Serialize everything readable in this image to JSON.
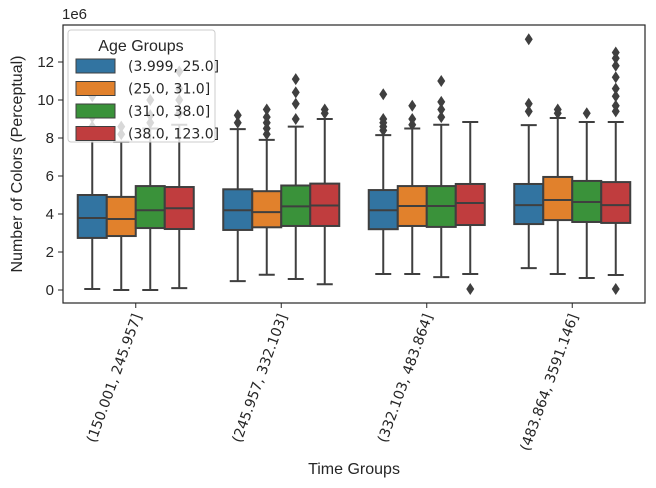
{
  "chart_data": {
    "type": "box",
    "title": "",
    "xlabel": "Time Groups",
    "ylabel": "Number of Colors (Perceptual)",
    "y_scale_label": "1e6",
    "ylim": [
      -0.7,
      13.9
    ],
    "yticks": [
      0,
      2,
      4,
      6,
      8,
      10,
      12
    ],
    "grid": false,
    "categories": [
      "(150.001, 245.957]",
      "(245.957, 332.103]",
      "(332.103, 483.864]",
      "(483.864, 3591.146]"
    ],
    "legend": {
      "title": "Age Groups",
      "placement": "upper-left",
      "entries": [
        "(3.999, 25.0]",
        "(25.0, 31.0]",
        "(31.0, 38.0]",
        "(38.0, 123.0]"
      ]
    },
    "series": [
      {
        "name": "(3.999, 25.0]",
        "color": "#3274a1",
        "boxes": [
          {
            "whisker_low": 0.05,
            "q1": 2.74,
            "median": 3.79,
            "q3": 5.0,
            "whisker_high": 8.0,
            "outliers": [
              8.6,
              9.1,
              10.2
            ]
          },
          {
            "whisker_low": 0.47,
            "q1": 3.16,
            "median": 4.2,
            "q3": 5.3,
            "whisker_high": 8.47,
            "outliers": [
              8.8,
              9.2
            ]
          },
          {
            "whisker_low": 0.84,
            "q1": 3.2,
            "median": 4.2,
            "q3": 5.26,
            "whisker_high": 8.15,
            "outliers": [
              8.4,
              8.6,
              8.8,
              9.0,
              10.3
            ]
          },
          {
            "whisker_low": 1.15,
            "q1": 3.47,
            "median": 4.47,
            "q3": 5.58,
            "whisker_high": 8.68,
            "outliers": [
              9.4,
              9.8,
              13.2
            ]
          }
        ]
      },
      {
        "name": "(25.0, 31.0]",
        "color": "#e1812c",
        "boxes": [
          {
            "whisker_low": 0.0,
            "q1": 2.84,
            "median": 3.74,
            "q3": 4.9,
            "whisker_high": 7.8,
            "outliers": [
              8.2,
              8.6
            ]
          },
          {
            "whisker_low": 0.8,
            "q1": 3.3,
            "median": 4.1,
            "q3": 5.2,
            "whisker_high": 7.9,
            "outliers": [
              8.2,
              8.5,
              8.8,
              9.1,
              9.5
            ]
          },
          {
            "whisker_low": 0.84,
            "q1": 3.37,
            "median": 4.42,
            "q3": 5.47,
            "whisker_high": 8.5,
            "outliers": [
              8.7,
              9.0,
              9.7
            ]
          },
          {
            "whisker_low": 0.84,
            "q1": 3.68,
            "median": 4.74,
            "q3": 5.95,
            "whisker_high": 9.05,
            "outliers": [
              9.3,
              9.5
            ]
          }
        ]
      },
      {
        "name": "(31.0, 38.0]",
        "color": "#3a923a",
        "boxes": [
          {
            "whisker_low": 0.0,
            "q1": 3.26,
            "median": 4.2,
            "q3": 5.47,
            "whisker_high": 8.5,
            "outliers": [
              8.8,
              9.2,
              10.0
            ]
          },
          {
            "whisker_low": 0.58,
            "q1": 3.37,
            "median": 4.4,
            "q3": 5.5,
            "whisker_high": 8.6,
            "outliers": [
              9.0,
              9.8,
              10.4,
              11.1
            ]
          },
          {
            "whisker_low": 0.68,
            "q1": 3.32,
            "median": 4.42,
            "q3": 5.47,
            "whisker_high": 8.7,
            "outliers": [
              9.1,
              9.5,
              9.9,
              11.0
            ]
          },
          {
            "whisker_low": 0.63,
            "q1": 3.58,
            "median": 4.63,
            "q3": 5.74,
            "whisker_high": 8.84,
            "outliers": [
              9.3
            ]
          }
        ]
      },
      {
        "name": "(38.0, 123.0]",
        "color": "#c03d3e",
        "boxes": [
          {
            "whisker_low": 0.1,
            "q1": 3.21,
            "median": 4.3,
            "q3": 5.42,
            "whisker_high": 8.7,
            "outliers": [
              9.3,
              10.0,
              10.6,
              11.5
            ]
          },
          {
            "whisker_low": 0.3,
            "q1": 3.37,
            "median": 4.45,
            "q3": 5.6,
            "whisker_high": 9.0,
            "outliers": [
              9.3,
              9.5
            ]
          },
          {
            "whisker_low": 0.84,
            "q1": 3.42,
            "median": 4.58,
            "q3": 5.58,
            "whisker_high": 8.84,
            "outliers": [
              0.05
            ]
          },
          {
            "whisker_low": 0.79,
            "q1": 3.53,
            "median": 4.47,
            "q3": 5.68,
            "whisker_high": 8.84,
            "outliers": [
              0.05,
              9.4,
              9.7,
              10.2,
              10.6,
              11.2,
              11.8,
              12.2,
              12.5
            ]
          }
        ]
      }
    ]
  }
}
